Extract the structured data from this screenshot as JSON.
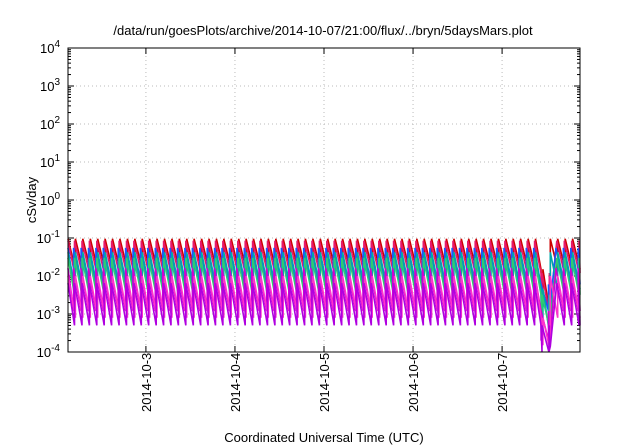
{
  "chart_data": {
    "type": "line",
    "title": "/data/run/goesPlots/archive/2014-10-07/21:00/flux/../bryn/5daysMars.plot",
    "xlabel": "Coordinated Universal Time (UTC)",
    "ylabel": "cSv/day",
    "yscale": "log",
    "ylim": [
      0.0001,
      10000
    ],
    "xlim": [
      "2014-10-02 03:00",
      "2014-10-07 21:00"
    ],
    "grid": true,
    "legend": "none",
    "y_ticks": [
      {
        "base": "10",
        "exp": "-4",
        "value": 0.0001
      },
      {
        "base": "10",
        "exp": "-3",
        "value": 0.001
      },
      {
        "base": "10",
        "exp": "-2",
        "value": 0.01
      },
      {
        "base": "10",
        "exp": "-1",
        "value": 0.1
      },
      {
        "base": "10",
        "exp": "0",
        "value": 1
      },
      {
        "base": "10",
        "exp": "1",
        "value": 10
      },
      {
        "base": "10",
        "exp": "2",
        "value": 100
      },
      {
        "base": "10",
        "exp": "3",
        "value": 1000
      },
      {
        "base": "10",
        "exp": "4",
        "value": 10000
      }
    ],
    "x_ticks": [
      {
        "label": "2014-10-3",
        "value": "2014-10-03 00:00"
      },
      {
        "label": "2014-10-4",
        "value": "2014-10-04 00:00"
      },
      {
        "label": "2014-10-5",
        "value": "2014-10-05 00:00"
      },
      {
        "label": "2014-10-6",
        "value": "2014-10-06 00:00"
      },
      {
        "label": "2014-10-7",
        "value": "2014-10-07 00:00"
      }
    ],
    "sawtooth_period_hours": 2,
    "gap": {
      "start": "2014-10-07 10:30",
      "end": "2014-10-07 13:00"
    },
    "series": [
      {
        "color": "#cc0000",
        "peak": 0.095,
        "trough": 0.015,
        "gap_value": 0.0015
      },
      {
        "color": "#e6196a",
        "peak": 0.085,
        "trough": 0.012,
        "gap_value": 0.0011
      },
      {
        "color": "#1a56ff",
        "peak": 0.055,
        "trough": 0.006,
        "gap_value": 0.0012
      },
      {
        "color": "#00a8a8",
        "peak": 0.042,
        "trough": 0.0045,
        "gap_value": 0.0004
      },
      {
        "color": "#2ecc71",
        "peak": 0.03,
        "trough": 0.0032,
        "gap_value": 0.0005
      },
      {
        "color": "#d000d0",
        "peak": 0.016,
        "trough": 0.0012,
        "gap_value": 0.0002
      },
      {
        "color": "#ff33cc",
        "peak": 0.01,
        "trough": 0.0008,
        "gap_value": 0.00015
      },
      {
        "color": "#b000e0",
        "peak": 0.0065,
        "trough": 0.0005,
        "gap_value": 0.0001
      }
    ]
  }
}
